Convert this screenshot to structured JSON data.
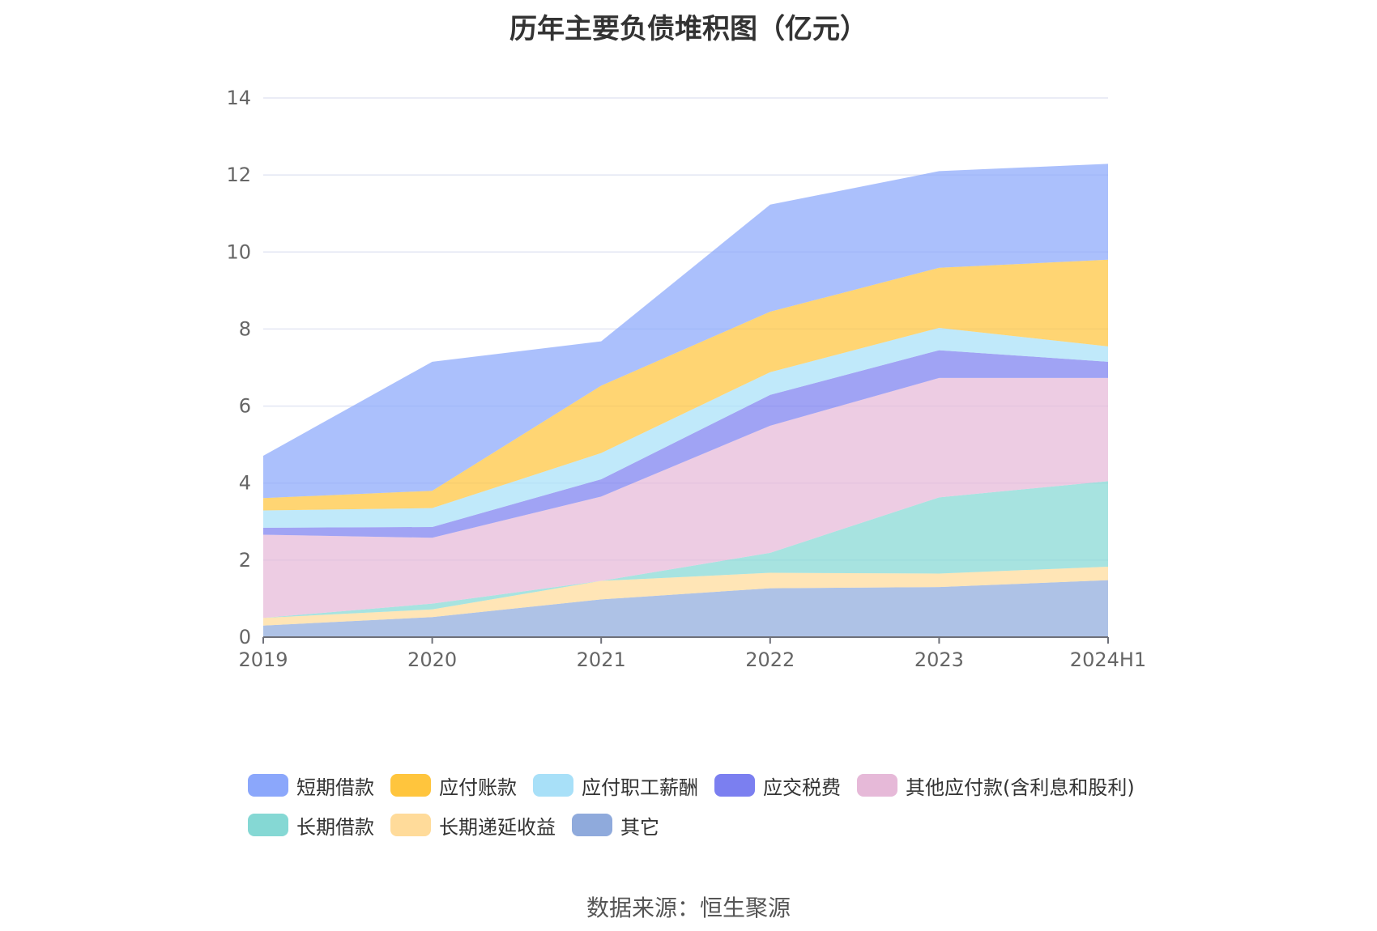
{
  "title": "历年主要负债堆积图（亿元）",
  "source": "数据来源：恒生聚源",
  "chart_data": {
    "type": "area",
    "stacked": true,
    "categories": [
      "2019",
      "2020",
      "2021",
      "2022",
      "2023",
      "2024H1"
    ],
    "ylim": [
      0,
      14
    ],
    "yticks": [
      0,
      2,
      4,
      6,
      8,
      10,
      12,
      14
    ],
    "grid": true,
    "legend_position": "bottom",
    "series": [
      {
        "name": "其它",
        "color": "#8FAADC",
        "values": [
          0.3,
          0.52,
          0.98,
          1.27,
          1.3,
          1.48
        ]
      },
      {
        "name": "长期递延收益",
        "color": "#FFDB9A",
        "values": [
          0.2,
          0.2,
          0.48,
          0.4,
          0.35,
          0.35
        ]
      },
      {
        "name": "长期借款",
        "color": "#85D8D4",
        "values": [
          0.0,
          0.15,
          0.0,
          0.52,
          1.98,
          2.22
        ]
      },
      {
        "name": "其他应付款(含利息和股利)",
        "color": "#E6B9D8",
        "values": [
          2.16,
          1.71,
          2.19,
          3.3,
          3.1,
          2.68
        ]
      },
      {
        "name": "应交税费",
        "color": "#7B7FF0",
        "values": [
          0.18,
          0.28,
          0.45,
          0.8,
          0.72,
          0.42
        ]
      },
      {
        "name": "应付职工薪酬",
        "color": "#A8E0F8",
        "values": [
          0.45,
          0.49,
          0.68,
          0.59,
          0.58,
          0.4
        ]
      },
      {
        "name": "应付账款",
        "color": "#FFC53D",
        "values": [
          0.32,
          0.45,
          1.75,
          1.57,
          1.56,
          2.25
        ]
      },
      {
        "name": "短期借款",
        "color": "#8BA7FB",
        "values": [
          1.1,
          3.35,
          1.15,
          2.78,
          2.51,
          2.49
        ]
      }
    ]
  },
  "legend_order": [
    "短期借款",
    "应付账款",
    "应付职工薪酬",
    "应交税费",
    "其他应付款(含利息和股利)",
    "长期借款",
    "长期递延收益",
    "其它"
  ]
}
